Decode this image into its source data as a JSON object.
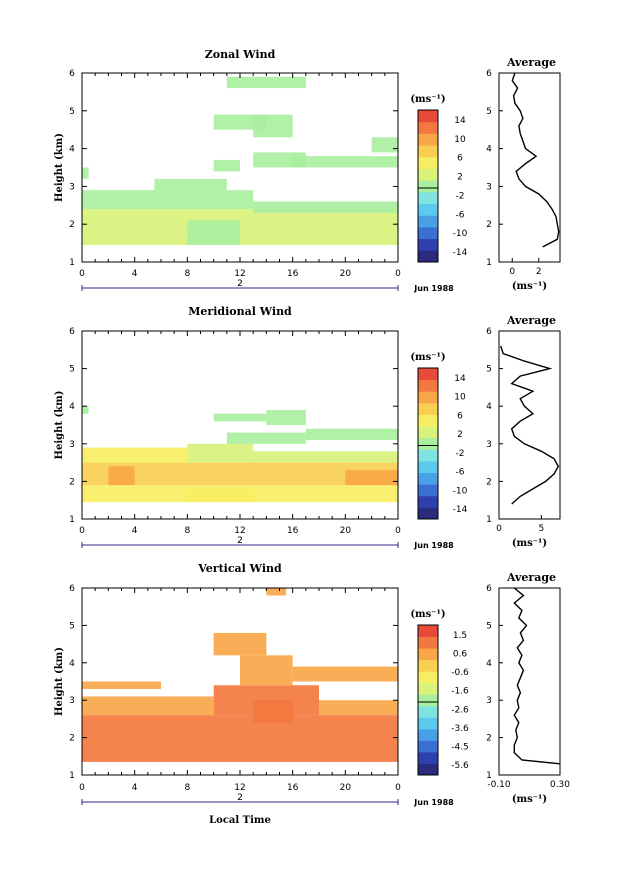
{
  "time_axis_label": "Local Time",
  "chart_data": [
    {
      "type": "heatmap",
      "title": "Zonal Wind",
      "ylabel": "Height (km)",
      "xticks": [
        "0",
        "4",
        "8",
        "12",
        "16",
        "20",
        "0"
      ],
      "yticks": [
        "1",
        "2",
        "3",
        "4",
        "5",
        "6"
      ],
      "xlim": [
        0,
        24
      ],
      "ylim": [
        1,
        6
      ],
      "date_marker": "2",
      "date_label": "Jun 1988",
      "colorbar": {
        "unit": "(ms⁻¹)",
        "ticks": [
          "14",
          "10",
          "6",
          "2",
          "-2",
          "-6",
          "-10",
          "-14"
        ],
        "range": [
          -16,
          16
        ]
      },
      "regions": [
        {
          "x": [
            0,
            24
          ],
          "y": [
            1.45,
            1.9
          ],
          "value": 3
        },
        {
          "x": [
            0,
            24
          ],
          "y": [
            1.9,
            2.4
          ],
          "value": 2
        },
        {
          "x": [
            0,
            13
          ],
          "y": [
            2.4,
            2.9
          ],
          "value": 1
        },
        {
          "x": [
            13,
            24
          ],
          "y": [
            2.3,
            2.6
          ],
          "value": 1
        },
        {
          "x": [
            5.5,
            11
          ],
          "y": [
            2.9,
            3.2
          ],
          "value": 0
        },
        {
          "x": [
            10,
            12
          ],
          "y": [
            3.4,
            3.7
          ],
          "value": 0
        },
        {
          "x": [
            13,
            17
          ],
          "y": [
            3.5,
            3.9
          ],
          "value": 0
        },
        {
          "x": [
            13,
            16
          ],
          "y": [
            4.3,
            4.9
          ],
          "value": 0
        },
        {
          "x": [
            10,
            14
          ],
          "y": [
            4.5,
            4.9
          ],
          "value": 0
        },
        {
          "x": [
            16,
            24
          ],
          "y": [
            3.5,
            3.8
          ],
          "value": 0
        },
        {
          "x": [
            22,
            24
          ],
          "y": [
            3.9,
            4.3
          ],
          "value": 0
        },
        {
          "x": [
            11,
            17
          ],
          "y": [
            5.6,
            5.9
          ],
          "value": 0
        },
        {
          "x": [
            0,
            0.5
          ],
          "y": [
            3.2,
            3.5
          ],
          "value": 0
        },
        {
          "x": [
            8,
            12
          ],
          "y": [
            1.45,
            2.1
          ],
          "value": 1
        }
      ],
      "profile": {
        "title": "Average",
        "xlabel": "(ms⁻¹)",
        "xticks": [
          "0",
          "2"
        ],
        "xlim": [
          -1,
          3.6
        ],
        "heights": [
          1.4,
          1.6,
          1.8,
          2.0,
          2.2,
          2.4,
          2.6,
          2.8,
          3.0,
          3.2,
          3.4,
          3.6,
          3.8,
          4.0,
          4.2,
          4.4,
          4.6,
          4.8,
          5.0,
          5.2,
          5.4,
          5.6,
          5.8,
          6.0
        ],
        "values": [
          2.3,
          3.4,
          3.5,
          3.4,
          3.3,
          3.0,
          2.6,
          2.0,
          1.0,
          0.5,
          0.3,
          1.0,
          1.8,
          1.0,
          0.8,
          0.6,
          0.5,
          0.8,
          0.6,
          0.2,
          0.1,
          0.4,
          0.0,
          0.2
        ]
      }
    },
    {
      "type": "heatmap",
      "title": "Meridional Wind",
      "ylabel": "Height (km)",
      "xticks": [
        "0",
        "4",
        "8",
        "12",
        "16",
        "20",
        "0"
      ],
      "yticks": [
        "1",
        "2",
        "3",
        "4",
        "5",
        "6"
      ],
      "xlim": [
        0,
        24
      ],
      "ylim": [
        1,
        6
      ],
      "date_marker": "2",
      "date_label": "Jun 1988",
      "colorbar": {
        "unit": "(ms⁻¹)",
        "ticks": [
          "14",
          "10",
          "6",
          "2",
          "-2",
          "-6",
          "-10",
          "-14"
        ],
        "range": [
          -16,
          16
        ]
      },
      "regions": [
        {
          "x": [
            0,
            24
          ],
          "y": [
            1.45,
            1.9
          ],
          "value": 5
        },
        {
          "x": [
            0,
            24
          ],
          "y": [
            1.9,
            2.5
          ],
          "value": 7
        },
        {
          "x": [
            2,
            4
          ],
          "y": [
            1.9,
            2.4
          ],
          "value": 10
        },
        {
          "x": [
            20,
            24
          ],
          "y": [
            1.9,
            2.3
          ],
          "value": 9
        },
        {
          "x": [
            0,
            8
          ],
          "y": [
            2.5,
            2.9
          ],
          "value": 4
        },
        {
          "x": [
            8,
            13
          ],
          "y": [
            2.5,
            3.0
          ],
          "value": 3
        },
        {
          "x": [
            13,
            24
          ],
          "y": [
            2.5,
            2.8
          ],
          "value": 3
        },
        {
          "x": [
            11,
            17
          ],
          "y": [
            3.0,
            3.3
          ],
          "value": 1
        },
        {
          "x": [
            10,
            14
          ],
          "y": [
            3.6,
            3.8
          ],
          "value": 0
        },
        {
          "x": [
            14,
            17
          ],
          "y": [
            3.5,
            3.9
          ],
          "value": 0
        },
        {
          "x": [
            17,
            24
          ],
          "y": [
            3.1,
            3.4
          ],
          "value": 0
        },
        {
          "x": [
            0,
            0.5
          ],
          "y": [
            3.8,
            4.0
          ],
          "value": 0
        },
        {
          "x": [
            8,
            13
          ],
          "y": [
            1.45,
            1.8
          ],
          "value": 6
        }
      ],
      "profile": {
        "title": "Average",
        "xlabel": "(ms⁻¹)",
        "xticks": [
          "0",
          "5"
        ],
        "xlim": [
          0,
          7.2
        ],
        "heights": [
          1.4,
          1.6,
          1.8,
          2.0,
          2.2,
          2.4,
          2.6,
          2.8,
          3.0,
          3.2,
          3.4,
          3.6,
          3.8,
          4.0,
          4.2,
          4.4,
          4.6,
          4.8,
          5.0,
          5.2,
          5.4,
          5.6
        ],
        "values": [
          1.5,
          2.5,
          4.0,
          5.5,
          6.5,
          7.0,
          6.5,
          5.0,
          3.0,
          1.8,
          1.5,
          2.5,
          4.0,
          3.0,
          2.5,
          4.0,
          1.5,
          2.5,
          6.0,
          3.0,
          0.5,
          0.2
        ]
      }
    },
    {
      "type": "heatmap",
      "title": "Vertical Wind",
      "ylabel": "Height (km)",
      "xticks": [
        "0",
        "4",
        "8",
        "12",
        "16",
        "20",
        "0"
      ],
      "yticks": [
        "1",
        "2",
        "3",
        "4",
        "5",
        "6"
      ],
      "xlim": [
        0,
        24
      ],
      "ylim": [
        1,
        6
      ],
      "date_marker": "2",
      "date_label": "Jun 1988",
      "colorbar": {
        "unit": "(ms⁻¹)",
        "ticks": [
          "1.5",
          "0.6",
          "-0.6",
          "-1.6",
          "-2.6",
          "-3.6",
          "-4.5",
          "-5.6"
        ],
        "range": [
          -6,
          2
        ]
      },
      "regions": [
        {
          "x": [
            0,
            24
          ],
          "y": [
            1.35,
            2.6
          ],
          "value": 0.8
        },
        {
          "x": [
            0,
            10
          ],
          "y": [
            2.6,
            3.1
          ],
          "value": 0.6
        },
        {
          "x": [
            10,
            18
          ],
          "y": [
            2.6,
            3.4
          ],
          "value": 0.9
        },
        {
          "x": [
            18,
            24
          ],
          "y": [
            2.6,
            3.0
          ],
          "value": 0.6
        },
        {
          "x": [
            0,
            6
          ],
          "y": [
            3.3,
            3.5
          ],
          "value": 0.5
        },
        {
          "x": [
            12,
            16
          ],
          "y": [
            3.4,
            4.2
          ],
          "value": 0.4
        },
        {
          "x": [
            10,
            14
          ],
          "y": [
            4.2,
            4.8
          ],
          "value": 0.3
        },
        {
          "x": [
            16,
            24
          ],
          "y": [
            3.5,
            3.9
          ],
          "value": 0.4
        },
        {
          "x": [
            13,
            16
          ],
          "y": [
            2.4,
            3.0
          ],
          "value": 1.2
        },
        {
          "x": [
            14,
            15.5
          ],
          "y": [
            5.8,
            6.0
          ],
          "value": 0.5
        }
      ],
      "profile": {
        "title": "Average",
        "xlabel": "(ms⁻¹)",
        "xticks": [
          "-0.10",
          "0.30"
        ],
        "xlim": [
          -0.1,
          0.3
        ],
        "heights": [
          1.3,
          1.4,
          1.6,
          1.8,
          2.0,
          2.2,
          2.4,
          2.6,
          2.8,
          3.0,
          3.2,
          3.4,
          3.6,
          3.8,
          4.0,
          4.2,
          4.4,
          4.6,
          4.8,
          5.0,
          5.2,
          5.4,
          5.6,
          5.8,
          6.0
        ],
        "values": [
          0.3,
          0.05,
          0.0,
          0.0,
          0.02,
          0.01,
          0.03,
          0.0,
          0.03,
          0.02,
          0.04,
          0.02,
          0.04,
          0.06,
          0.03,
          0.05,
          0.02,
          0.06,
          0.04,
          0.08,
          0.03,
          0.05,
          0.0,
          0.06,
          0.0
        ]
      }
    }
  ]
}
